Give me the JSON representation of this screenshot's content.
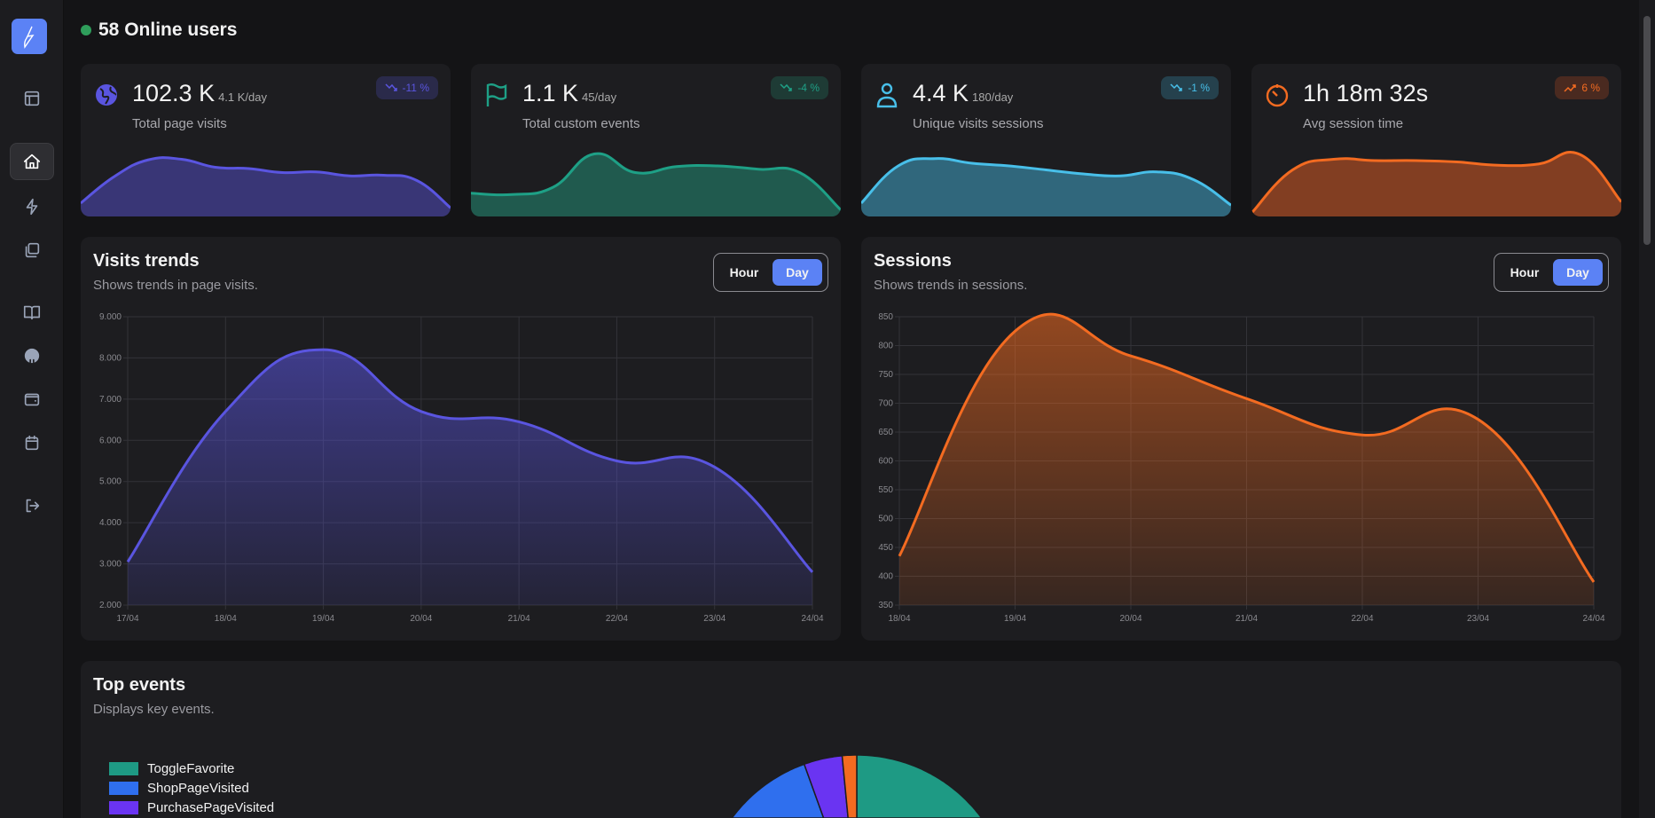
{
  "sidebar": {
    "items": [
      {
        "name": "layout"
      },
      {
        "name": "home",
        "active": true
      },
      {
        "name": "events"
      },
      {
        "name": "pages"
      },
      {
        "name": "docs"
      },
      {
        "name": "github"
      },
      {
        "name": "wallet"
      },
      {
        "name": "calendar"
      },
      {
        "name": "logout"
      }
    ]
  },
  "online": {
    "text": "58 Online users",
    "color": "#2f9e5b"
  },
  "stats": [
    {
      "value": "102.3 K",
      "per_day": "4.1 K/day",
      "label": "Total page visits",
      "change": "-11 %",
      "trend": "down",
      "icon": "globe-icon",
      "color": "#5a55e0",
      "fill": "#393676",
      "badge_bg": "#2a2a4a",
      "spark": [
        2,
        6,
        8.5,
        8.6,
        7.4,
        7.2,
        6.6,
        6.7,
        6.1,
        6.2,
        5.4,
        1.3
      ]
    },
    {
      "value": "1.1 K",
      "per_day": "45/day",
      "label": "Total custom events",
      "change": "-4 %",
      "trend": "down",
      "icon": "flag-icon",
      "color": "#1ea086",
      "fill": "#205a4e",
      "badge_bg": "#1e3b35",
      "spark": [
        3.5,
        3.3,
        4.4,
        9.4,
        6.6,
        7.5,
        7.6,
        7.1,
        6.6,
        1
      ]
    },
    {
      "value": "4.4 K",
      "per_day": "180/day",
      "label": "Unique visits sessions",
      "change": "-1 %",
      "trend": "down",
      "icon": "user-icon",
      "color": "#48bfe9",
      "fill": "#30677c",
      "badge_bg": "#25414d",
      "spark": [
        2,
        7.6,
        8.7,
        8,
        7.6,
        7,
        6.4,
        6.1,
        6.7,
        5.5,
        1.7
      ]
    },
    {
      "value": "1h 18m 32s",
      "per_day": "",
      "label": "Avg session time",
      "change": "6 %",
      "trend": "up",
      "icon": "timer-icon",
      "color": "#f36b21",
      "fill": "#823e22",
      "badge_bg": "#4a2a20",
      "spark": [
        0.5,
        7,
        8.6,
        8.4,
        8.4,
        8.2,
        7.7,
        7.9,
        9.3,
        2.2
      ]
    }
  ],
  "visits": {
    "title": "Visits trends",
    "subtitle": "Shows trends in page visits.",
    "toggle": {
      "hour": "Hour",
      "day": "Day",
      "selected": "Day"
    }
  },
  "sessions": {
    "title": "Sessions",
    "subtitle": "Shows trends in sessions.",
    "toggle": {
      "hour": "Hour",
      "day": "Day",
      "selected": "Day"
    }
  },
  "events": {
    "title": "Top events",
    "subtitle": "Displays key events."
  },
  "chart_data": [
    {
      "type": "area",
      "categories": [
        "17/04",
        "18/04",
        "19/04",
        "20/04",
        "21/04",
        "22/04",
        "23/04",
        "24/04"
      ],
      "values": [
        3050,
        6700,
        8200,
        6700,
        6450,
        5500,
        5350,
        2800
      ],
      "ylim": [
        2000,
        9000
      ],
      "yticks": [
        "2.000",
        "3.000",
        "4.000",
        "5.000",
        "6.000",
        "7.000",
        "8.000",
        "9.000"
      ],
      "grid": true,
      "color": "#5a55e0"
    },
    {
      "type": "area",
      "categories": [
        "18/04",
        "19/04",
        "20/04",
        "21/04",
        "22/04",
        "23/04",
        "24/04"
      ],
      "values": [
        435,
        825,
        782,
        708,
        645,
        672,
        390
      ],
      "ylim": [
        350,
        850
      ],
      "yticks": [
        "350",
        "400",
        "450",
        "500",
        "550",
        "600",
        "650",
        "700",
        "750",
        "800",
        "850"
      ],
      "grid": true,
      "color": "#f36b21"
    },
    {
      "type": "pie",
      "labels": [
        "ToggleFavorite",
        "ShopPageVisited",
        "PurchasePageVisited",
        ""
      ],
      "values": [
        56,
        38.5,
        4,
        1.5
      ],
      "colors": [
        "#1e9a84",
        "#2f6fee",
        "#6a34f2",
        "#f36b21"
      ],
      "legend": "left"
    }
  ]
}
